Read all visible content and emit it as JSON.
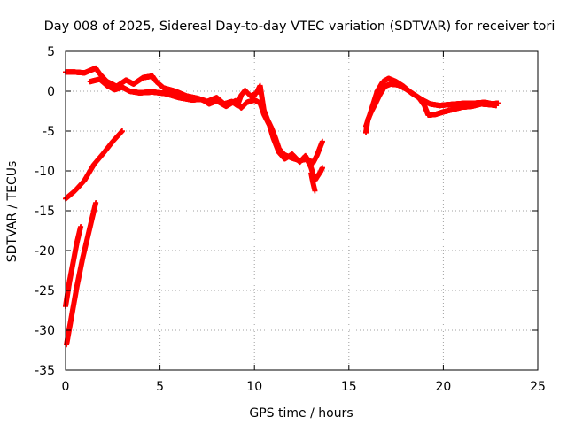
{
  "chart_data": {
    "type": "scatter",
    "title": "Day 008 of 2025, Sidereal Day-to-day VTEC variation (SDTVAR) for receiver tori",
    "xlabel": "GPS time / hours",
    "ylabel": "SDTVAR / TECUs",
    "xlim": [
      0,
      25
    ],
    "ylim": [
      -35,
      5
    ],
    "xticks": [
      0,
      5,
      10,
      15,
      20,
      25
    ],
    "yticks": [
      5,
      0,
      -5,
      -10,
      -15,
      -20,
      -25,
      -30,
      -35
    ],
    "grid": true,
    "marker_color": "#ff0000",
    "series": [
      {
        "segments": [
          [
            [
              0,
              2.4
            ],
            [
              0.5,
              2.4
            ],
            [
              1.0,
              2.3
            ],
            [
              1.3,
              2.6
            ],
            [
              1.6,
              2.9
            ],
            [
              1.8,
              2.2
            ],
            [
              2.2,
              1.2
            ],
            [
              2.7,
              0.6
            ],
            [
              3.2,
              1.4
            ],
            [
              3.6,
              0.9
            ],
            [
              4.1,
              1.7
            ],
            [
              4.6,
              1.9
            ],
            [
              4.8,
              1.2
            ],
            [
              5.2,
              0.4
            ],
            [
              5.8,
              0.0
            ],
            [
              6.4,
              -0.6
            ],
            [
              7.0,
              -0.9
            ],
            [
              7.5,
              -1.3
            ],
            [
              8.0,
              -0.8
            ],
            [
              8.4,
              -1.6
            ],
            [
              8.8,
              -1.3
            ],
            [
              9.1,
              -1.8
            ],
            [
              9.3,
              -0.5
            ],
            [
              9.5,
              0.1
            ],
            [
              9.8,
              -0.6
            ],
            [
              10.1,
              -0.3
            ],
            [
              10.3,
              0.7
            ],
            [
              10.5,
              -2.4
            ],
            [
              10.7,
              -3.6
            ],
            [
              10.9,
              -4.6
            ],
            [
              11.1,
              -5.8
            ],
            [
              11.3,
              -7.2
            ],
            [
              11.6,
              -8.0
            ],
            [
              12.0,
              -8.4
            ],
            [
              12.4,
              -8.7
            ],
            [
              12.8,
              -8.5
            ],
            [
              13.1,
              -9.0
            ],
            [
              13.3,
              -8.1
            ],
            [
              13.6,
              -6.3
            ]
          ],
          [
            [
              1.3,
              1.2
            ],
            [
              1.8,
              1.5
            ],
            [
              2.2,
              0.7
            ],
            [
              2.6,
              0.2
            ],
            [
              3.0,
              0.5
            ],
            [
              3.4,
              0.0
            ],
            [
              3.9,
              -0.2
            ],
            [
              4.6,
              -0.1
            ],
            [
              5.3,
              -0.3
            ],
            [
              6.0,
              -0.8
            ],
            [
              6.7,
              -1.1
            ],
            [
              7.2,
              -1.0
            ],
            [
              7.6,
              -1.6
            ],
            [
              8.0,
              -1.2
            ],
            [
              8.5,
              -1.9
            ],
            [
              9.0,
              -1.2
            ],
            [
              9.3,
              -2.1
            ],
            [
              9.6,
              -1.4
            ],
            [
              10.0,
              -1.1
            ],
            [
              10.3,
              -1.5
            ],
            [
              10.5,
              -2.9
            ],
            [
              10.8,
              -4.3
            ],
            [
              11.0,
              -5.9
            ],
            [
              11.3,
              -7.7
            ],
            [
              11.6,
              -8.5
            ],
            [
              12.0,
              -7.9
            ],
            [
              12.4,
              -8.9
            ],
            [
              12.7,
              -8.1
            ],
            [
              13.0,
              -9.6
            ],
            [
              13.2,
              -11.2
            ],
            [
              13.5,
              -10.1
            ],
            [
              13.6,
              -9.6
            ]
          ],
          [
            [
              13.0,
              -10.3
            ],
            [
              13.1,
              -11.5
            ],
            [
              13.2,
              -12.5
            ]
          ],
          [
            [
              0,
              -13.5
            ],
            [
              0.5,
              -12.5
            ],
            [
              1.0,
              -11.2
            ],
            [
              1.5,
              -9.2
            ],
            [
              2.0,
              -7.8
            ],
            [
              2.5,
              -6.3
            ],
            [
              3.0,
              -5.0
            ]
          ],
          [
            [
              0,
              -27.0
            ],
            [
              0.2,
              -24.0
            ],
            [
              0.4,
              -21.5
            ],
            [
              0.6,
              -19.0
            ],
            [
              0.8,
              -17.0
            ]
          ],
          [
            [
              0.05,
              -31.8
            ],
            [
              0.3,
              -28.5
            ],
            [
              0.6,
              -24.5
            ],
            [
              0.9,
              -21.0
            ],
            [
              1.2,
              -18.0
            ],
            [
              1.5,
              -15.0
            ],
            [
              1.6,
              -14.0
            ]
          ],
          [
            [
              15.9,
              -5.2
            ],
            [
              16.0,
              -3.6
            ],
            [
              16.2,
              -2.5
            ],
            [
              16.4,
              -1.6
            ],
            [
              16.6,
              -0.6
            ],
            [
              16.9,
              0.6
            ],
            [
              17.2,
              0.9
            ],
            [
              17.6,
              0.8
            ],
            [
              18.0,
              0.3
            ],
            [
              18.5,
              -0.5
            ],
            [
              18.9,
              -1.1
            ],
            [
              19.3,
              -1.6
            ],
            [
              19.8,
              -1.8
            ],
            [
              20.2,
              -1.7
            ],
            [
              20.7,
              -1.6
            ],
            [
              21.2,
              -1.5
            ],
            [
              21.7,
              -1.5
            ],
            [
              22.2,
              -1.4
            ],
            [
              22.6,
              -1.6
            ],
            [
              22.9,
              -1.5
            ]
          ],
          [
            [
              15.9,
              -4.4
            ],
            [
              16.1,
              -3.0
            ],
            [
              16.3,
              -1.5
            ],
            [
              16.5,
              0.0
            ],
            [
              16.8,
              1.2
            ],
            [
              17.1,
              1.6
            ],
            [
              17.5,
              1.2
            ],
            [
              17.9,
              0.6
            ],
            [
              18.3,
              -0.2
            ],
            [
              18.7,
              -0.8
            ],
            [
              19.0,
              -1.8
            ],
            [
              19.2,
              -3.0
            ],
            [
              19.6,
              -2.9
            ],
            [
              20.0,
              -2.6
            ],
            [
              20.5,
              -2.3
            ],
            [
              21.0,
              -2.0
            ],
            [
              21.5,
              -1.9
            ],
            [
              22.0,
              -1.6
            ],
            [
              22.5,
              -1.7
            ],
            [
              22.8,
              -1.8
            ]
          ]
        ]
      }
    ]
  }
}
